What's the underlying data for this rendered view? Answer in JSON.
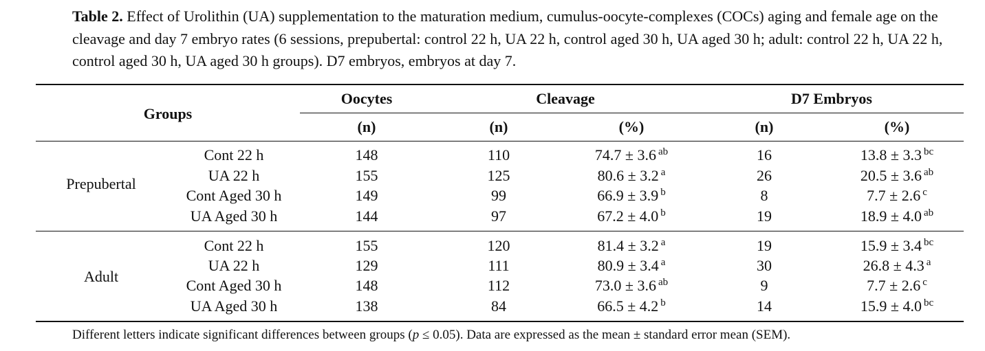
{
  "caption": {
    "label": "Table 2.",
    "text": " Effect of Urolithin (UA) supplementation to the maturation medium, cumulus-oocyte-complexes (COCs) aging and female age on the cleavage and day 7 embryo rates (6 sessions, prepubertal: control 22 h, UA 22 h, control aged 30 h, UA aged 30 h; adult: control 22 h, UA 22 h, control aged 30 h, UA aged 30 h groups). D7 embryos, embryos at day 7."
  },
  "header": {
    "groups": "Groups",
    "oocytes": "Oocytes",
    "cleavage": "Cleavage",
    "d7": "D7 Embryos",
    "n": "(n)",
    "pct": "(%)"
  },
  "sections": [
    {
      "name": "Prepubertal",
      "rows": [
        {
          "group": "Cont 22 h",
          "oocytes": "148",
          "cleavage_n": "110",
          "cleavage_pct": "74.7 ± 3.6",
          "cleavage_sup": "ab",
          "d7_n": "16",
          "d7_pct": "13.8 ± 3.3",
          "d7_sup": "bc"
        },
        {
          "group": "UA 22 h",
          "oocytes": "155",
          "cleavage_n": "125",
          "cleavage_pct": "80.6 ± 3.2",
          "cleavage_sup": "a",
          "d7_n": "26",
          "d7_pct": "20.5 ± 3.6",
          "d7_sup": "ab"
        },
        {
          "group": "Cont Aged 30 h",
          "oocytes": "149",
          "cleavage_n": "99",
          "cleavage_pct": "66.9 ± 3.9",
          "cleavage_sup": "b",
          "d7_n": "8",
          "d7_pct": "7.7 ± 2.6",
          "d7_sup": "c"
        },
        {
          "group": "UA Aged 30 h",
          "oocytes": "144",
          "cleavage_n": "97",
          "cleavage_pct": "67.2 ± 4.0",
          "cleavage_sup": "b",
          "d7_n": "19",
          "d7_pct": "18.9 ± 4.0",
          "d7_sup": "ab"
        }
      ]
    },
    {
      "name": "Adult",
      "rows": [
        {
          "group": "Cont 22 h",
          "oocytes": "155",
          "cleavage_n": "120",
          "cleavage_pct": "81.4 ± 3.2",
          "cleavage_sup": "a",
          "d7_n": "19",
          "d7_pct": "15.9 ± 3.4",
          "d7_sup": "bc"
        },
        {
          "group": "UA 22 h",
          "oocytes": "129",
          "cleavage_n": "111",
          "cleavage_pct": "80.9 ± 3.4",
          "cleavage_sup": "a",
          "d7_n": "30",
          "d7_pct": "26.8 ± 4.3",
          "d7_sup": "a"
        },
        {
          "group": "Cont Aged 30 h",
          "oocytes": "148",
          "cleavage_n": "112",
          "cleavage_pct": "73.0 ± 3.6",
          "cleavage_sup": "ab",
          "d7_n": "9",
          "d7_pct": "7.7 ± 2.6",
          "d7_sup": "c"
        },
        {
          "group": "UA Aged 30 h",
          "oocytes": "138",
          "cleavage_n": "84",
          "cleavage_pct": "66.5 ± 4.2",
          "cleavage_sup": "b",
          "d7_n": "14",
          "d7_pct": "15.9 ± 4.0",
          "d7_sup": "bc"
        }
      ]
    }
  ],
  "footnote": {
    "before_p": "Different letters indicate significant differences between groups (",
    "p_symbol": "p",
    "after_p": " ≤ 0.05). Data are expressed as the mean ± standard error mean (SEM)."
  }
}
